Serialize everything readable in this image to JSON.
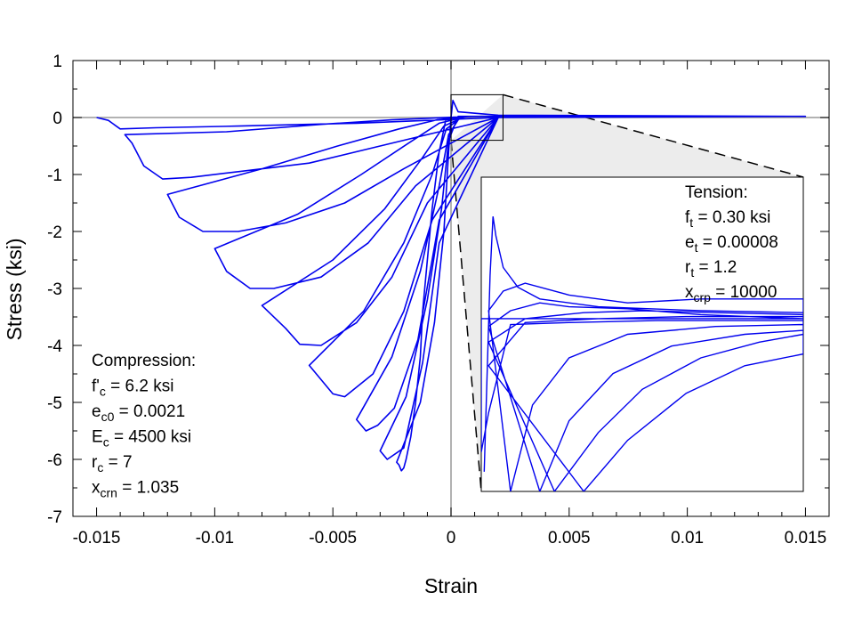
{
  "chart_data": {
    "type": "line",
    "xlabel": "Strain",
    "ylabel": "Stress (ksi)",
    "xlim": [
      -0.016,
      0.016
    ],
    "ylim": [
      -7,
      1
    ],
    "xticks": [
      -0.015,
      -0.01,
      -0.005,
      0,
      0.005,
      0.01,
      0.015
    ],
    "xtick_labels": [
      "-0.015",
      "-0.01",
      "-0.005",
      "0",
      "0.005",
      "0.01",
      "0.015"
    ],
    "yticks": [
      1,
      0,
      -1,
      -2,
      -3,
      -4,
      -5,
      -6,
      -7
    ],
    "ytick_labels": [
      "1",
      "0",
      "-1",
      "-2",
      "-3",
      "-4",
      "-5",
      "-6",
      "-7"
    ],
    "line_color": "#0000ee",
    "axis_zero_color": "#999999",
    "inset_shade_color": "#ececec",
    "series": [
      {
        "values": [
          [
            -0.0002,
            0
          ],
          [
            -0.0005,
            -0.6
          ],
          [
            -0.0008,
            -1.6
          ],
          [
            -0.001,
            -2.5
          ],
          [
            -0.0012,
            -3.4
          ],
          [
            -0.0013,
            -4.2
          ],
          [
            -0.0015,
            -5.0
          ],
          [
            -0.0017,
            -5.6
          ],
          [
            -0.0019,
            -6.0
          ],
          [
            -0.002,
            -6.15
          ],
          [
            -0.0021,
            -6.2
          ],
          [
            -0.0022,
            -6.1
          ],
          [
            -0.0023,
            -6.05
          ],
          [
            -0.0013,
            -5.0
          ],
          [
            -0.0007,
            -3.6
          ],
          [
            -0.0003,
            -2.0
          ],
          [
            -0.0001,
            -0.6
          ],
          [
            0,
            0
          ],
          [
            8e-05,
            0.3
          ],
          [
            0.0003,
            0.1
          ],
          [
            0.002,
            0.04
          ],
          [
            0.015,
            0.02
          ],
          [
            0.002,
            0
          ],
          [
            -0.0005,
            -2.2
          ],
          [
            -0.0012,
            -4.3
          ],
          [
            -0.002,
            -5.8
          ],
          [
            -0.0027,
            -6.0
          ],
          [
            -0.003,
            -5.85
          ],
          [
            -0.0019,
            -4.9
          ],
          [
            -0.001,
            -3.2
          ],
          [
            -0.0004,
            -1.6
          ],
          [
            -0.0001,
            -0.4
          ],
          [
            0.0003,
            0.02
          ],
          [
            0.015,
            0.02
          ],
          [
            0.002,
            0
          ],
          [
            -0.0005,
            -1.8
          ],
          [
            -0.0014,
            -3.9
          ],
          [
            -0.0024,
            -5.1
          ],
          [
            -0.0031,
            -5.4
          ],
          [
            -0.0036,
            -5.5
          ],
          [
            -0.004,
            -5.3
          ],
          [
            -0.0025,
            -4.2
          ],
          [
            -0.0013,
            -2.7
          ],
          [
            -0.0005,
            -1.2
          ],
          [
            -0.0001,
            -0.3
          ],
          [
            0.0004,
            0.02
          ],
          [
            0.015,
            0.02
          ],
          [
            0.002,
            0
          ],
          [
            -0.0008,
            -1.8
          ],
          [
            -0.002,
            -3.4
          ],
          [
            -0.0033,
            -4.5
          ],
          [
            -0.0045,
            -4.9
          ],
          [
            -0.005,
            -4.85
          ],
          [
            -0.006,
            -4.35
          ],
          [
            -0.0037,
            -3.4
          ],
          [
            -0.002,
            -2.2
          ],
          [
            -0.0008,
            -1.0
          ],
          [
            -0.0002,
            -0.2
          ],
          [
            0.0005,
            0.02
          ],
          [
            0.015,
            0.02
          ],
          [
            0.002,
            0
          ],
          [
            -0.001,
            -1.5
          ],
          [
            -0.0025,
            -2.8
          ],
          [
            -0.004,
            -3.6
          ],
          [
            -0.0055,
            -4.0
          ],
          [
            -0.0064,
            -3.98
          ],
          [
            -0.007,
            -3.7
          ],
          [
            -0.008,
            -3.3
          ],
          [
            -0.005,
            -2.5
          ],
          [
            -0.0028,
            -1.6
          ],
          [
            -0.0012,
            -0.7
          ],
          [
            -0.0003,
            -0.15
          ],
          [
            0.0006,
            0.02
          ],
          [
            0.015,
            0.02
          ],
          [
            0.002,
            0
          ],
          [
            -0.0015,
            -1.2
          ],
          [
            -0.0035,
            -2.2
          ],
          [
            -0.0055,
            -2.8
          ],
          [
            -0.0075,
            -3.0
          ],
          [
            -0.0085,
            -3.0
          ],
          [
            -0.0095,
            -2.7
          ],
          [
            -0.01,
            -2.3
          ],
          [
            -0.0065,
            -1.7
          ],
          [
            -0.0038,
            -1.0
          ],
          [
            -0.0018,
            -0.45
          ],
          [
            -0.0005,
            -0.1
          ],
          [
            0.0007,
            0.02
          ],
          [
            0.015,
            0.02
          ],
          [
            0.002,
            0
          ],
          [
            -0.002,
            -0.9
          ],
          [
            -0.0045,
            -1.5
          ],
          [
            -0.007,
            -1.85
          ],
          [
            -0.009,
            -2.0
          ],
          [
            -0.0105,
            -2.0
          ],
          [
            -0.0115,
            -1.75
          ],
          [
            -0.012,
            -1.35
          ],
          [
            -0.008,
            -0.9
          ],
          [
            -0.0048,
            -0.5
          ],
          [
            -0.0022,
            -0.2
          ],
          [
            -0.0006,
            -0.04
          ],
          [
            0.0008,
            0.02
          ],
          [
            0.015,
            0.02
          ],
          [
            0.002,
            0
          ],
          [
            -0.003,
            -0.5
          ],
          [
            -0.006,
            -0.8
          ],
          [
            -0.009,
            -0.95
          ],
          [
            -0.011,
            -1.05
          ],
          [
            -0.0122,
            -1.08
          ],
          [
            -0.013,
            -0.85
          ],
          [
            -0.0135,
            -0.45
          ],
          [
            -0.0138,
            -0.3
          ],
          [
            -0.0095,
            -0.25
          ],
          [
            -0.0055,
            -0.12
          ],
          [
            -0.0025,
            -0.04
          ],
          [
            0.0009,
            0.02
          ],
          [
            0.015,
            0.02
          ],
          [
            0.002,
            0
          ],
          [
            -0.004,
            -0.1
          ],
          [
            -0.009,
            -0.15
          ],
          [
            -0.0125,
            -0.18
          ],
          [
            -0.014,
            -0.2
          ],
          [
            -0.0145,
            -0.05
          ],
          [
            -0.015,
            0
          ]
        ]
      }
    ],
    "inset": {
      "xlim": [
        0,
        0.0022
      ],
      "ylim": [
        -0.4,
        0.4
      ],
      "values": [
        [
          2e-05,
          -0.35
        ],
        [
          4e-05,
          -0.1
        ],
        [
          6e-05,
          0.15
        ],
        [
          8e-05,
          0.3
        ],
        [
          0.0001,
          0.25
        ],
        [
          0.00015,
          0.17
        ],
        [
          0.00025,
          0.12
        ],
        [
          0.0004,
          0.09
        ],
        [
          0.0008,
          0.07
        ],
        [
          0.0015,
          0.06
        ],
        [
          0.0022,
          0.055
        ],
        [
          0.0022,
          0.09
        ],
        [
          0.0015,
          0.09
        ],
        [
          0.001,
          0.08
        ],
        [
          0.0006,
          0.1
        ],
        [
          0.0003,
          0.13
        ],
        [
          0.00015,
          0.11
        ],
        [
          5e-05,
          0.06
        ],
        [
          0.0002,
          -0.4
        ],
        [
          0.00035,
          -0.18
        ],
        [
          0.0006,
          -0.06
        ],
        [
          0.001,
          0.0
        ],
        [
          0.0016,
          0.02
        ],
        [
          0.0022,
          0.025
        ],
        [
          0.0022,
          0.04
        ],
        [
          0.0015,
          0.05
        ],
        [
          0.001,
          0.065
        ],
        [
          0.0006,
          0.07
        ],
        [
          0.0004,
          0.08
        ],
        [
          0.0002,
          0.06
        ],
        [
          5e-05,
          0.02
        ],
        [
          0.0004,
          -0.4
        ],
        [
          0.0006,
          -0.22
        ],
        [
          0.0009,
          -0.1
        ],
        [
          0.0013,
          -0.03
        ],
        [
          0.0018,
          0.0
        ],
        [
          0.0022,
          0.01
        ],
        [
          0.0022,
          0.05
        ],
        [
          0.0016,
          0.055
        ],
        [
          0.0011,
          0.06
        ],
        [
          0.0007,
          0.055
        ],
        [
          0.0003,
          0.04
        ],
        [
          5e-05,
          -0.02
        ],
        [
          0.0005,
          -0.4
        ],
        [
          0.0008,
          -0.25
        ],
        [
          0.0011,
          -0.14
        ],
        [
          0.0015,
          -0.06
        ],
        [
          0.0019,
          -0.02
        ],
        [
          0.0022,
          0.0
        ],
        [
          0.0022,
          0.045
        ],
        [
          0.0014,
          0.045
        ],
        [
          0.0008,
          0.04
        ],
        [
          0.0003,
          0.03
        ],
        [
          5e-05,
          -0.08
        ],
        [
          0.0007,
          -0.4
        ],
        [
          0.001,
          -0.27
        ],
        [
          0.0014,
          -0.15
        ],
        [
          0.0018,
          -0.08
        ],
        [
          0.0022,
          -0.05
        ],
        [
          0.0022,
          0.035
        ],
        [
          0.0012,
          0.035
        ],
        [
          0.0006,
          0.03
        ],
        [
          0.0002,
          0.025
        ],
        [
          5e-05,
          -0.2
        ],
        [
          0.0,
          -0.3
        ],
        [
          0.0,
          0.04
        ],
        [
          0.0012,
          0.04
        ],
        [
          0.0022,
          0.04
        ]
      ]
    }
  },
  "annotations": {
    "compression": {
      "header": "Compression:",
      "lines": [
        {
          "main": "f'",
          "sub": "c",
          "rest": " = 6.2 ksi"
        },
        {
          "main": "e",
          "sub": "c0",
          "rest": " = 0.0021"
        },
        {
          "main": "E",
          "sub": "c",
          "rest": " = 4500 ksi"
        },
        {
          "main": "r",
          "sub": "c",
          "rest": " = 7"
        },
        {
          "main": "x",
          "sub": "crn",
          "rest": " = 1.035"
        }
      ]
    },
    "tension": {
      "header": "Tension:",
      "lines": [
        {
          "main": "f",
          "sub": "t",
          "rest": " = 0.30 ksi"
        },
        {
          "main": "e",
          "sub": "t",
          "rest": " = 0.00008"
        },
        {
          "main": "r",
          "sub": "t",
          "rest": " = 1.2"
        },
        {
          "main": "x",
          "sub": "crp",
          "rest": " = 10000"
        }
      ]
    }
  }
}
